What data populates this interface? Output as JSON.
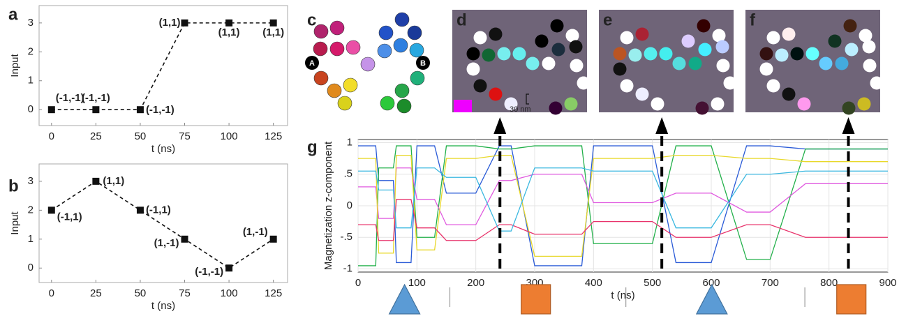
{
  "chart_data": [
    {
      "type": "line",
      "label": "a",
      "xlabel": "t (ns)",
      "ylabel": "Input",
      "x": [
        0,
        25,
        50,
        75,
        100,
        125
      ],
      "values": [
        0,
        0,
        0,
        3,
        3,
        3
      ],
      "point_labels": [
        "(-1,-1)",
        "(-1,-1)",
        "(-1,-1)",
        "(1,1)",
        "(1,1)",
        "(1,1)"
      ],
      "color": "#111111",
      "line_style": "dashed",
      "marker": "square",
      "xlim": [
        -7,
        133
      ],
      "ylim": [
        -0.55,
        3.6
      ],
      "xticks": [
        0,
        25,
        50,
        75,
        100,
        125
      ],
      "yticks": [
        0,
        1,
        2,
        3
      ],
      "grid": false
    },
    {
      "type": "line",
      "label": "b",
      "xlabel": "t (ns)",
      "ylabel": "Input",
      "x": [
        0,
        25,
        50,
        75,
        100,
        125
      ],
      "values": [
        2,
        3,
        2,
        1,
        0,
        1
      ],
      "point_labels": [
        "(-1,1)",
        "(1,1)",
        "(-1,1)",
        "(1,-1)",
        "(-1,-1)",
        "(1,-1)"
      ],
      "color": "#111111",
      "line_style": "dashed",
      "marker": "square",
      "xlim": [
        -7,
        133
      ],
      "ylim": [
        -0.5,
        3.6
      ],
      "xticks": [
        0,
        25,
        50,
        75,
        100,
        125
      ],
      "yticks": [
        0,
        1,
        2,
        3
      ],
      "grid": false
    },
    {
      "type": "line",
      "label": "g",
      "xlabel": "t (ns)",
      "ylabel": "Magnetization z-component",
      "x": [
        0,
        30,
        35,
        60,
        65,
        90,
        100,
        130,
        150,
        200,
        240,
        260,
        300,
        380,
        400,
        500,
        540,
        600,
        660,
        700,
        760,
        830,
        900
      ],
      "series": [
        {
          "color": "#2a5bd7",
          "values": [
            0.95,
            0.95,
            0.4,
            0.4,
            -0.9,
            -0.9,
            0.95,
            0.95,
            0.2,
            0.2,
            0.95,
            0.95,
            -0.95,
            -0.95,
            0.95,
            0.95,
            -0.9,
            -0.9,
            0.95,
            0.95,
            0.9,
            0.9,
            0.9
          ]
        },
        {
          "color": "#22b04a",
          "values": [
            -0.95,
            -0.95,
            0.6,
            0.6,
            0.95,
            0.95,
            -0.5,
            -0.5,
            0.95,
            0.95,
            0.9,
            0.9,
            0.95,
            0.95,
            -0.6,
            -0.6,
            0.95,
            0.95,
            -0.85,
            -0.85,
            0.9,
            0.9,
            0.9
          ]
        },
        {
          "color": "#e05adf",
          "values": [
            0.3,
            0.3,
            -0.2,
            -0.2,
            0.6,
            0.6,
            0.1,
            0.1,
            -0.3,
            -0.3,
            0.4,
            0.4,
            0.5,
            0.5,
            0.05,
            0.05,
            0.2,
            0.2,
            -0.1,
            -0.1,
            0.35,
            0.35,
            0.35
          ]
        },
        {
          "color": "#e8d82a",
          "values": [
            0.75,
            0.75,
            -0.75,
            -0.75,
            0.8,
            0.8,
            -0.7,
            -0.7,
            0.75,
            0.75,
            0.8,
            0.8,
            -0.8,
            -0.8,
            0.75,
            0.75,
            0.8,
            0.8,
            0.75,
            0.75,
            0.7,
            0.7,
            0.7
          ]
        },
        {
          "color": "#e8336b",
          "values": [
            -0.3,
            -0.3,
            -0.55,
            -0.55,
            0.1,
            0.1,
            -0.35,
            -0.35,
            -0.55,
            -0.55,
            -0.3,
            -0.3,
            -0.45,
            -0.45,
            -0.25,
            -0.25,
            -0.5,
            -0.5,
            -0.3,
            -0.3,
            -0.5,
            -0.5,
            -0.5
          ]
        },
        {
          "color": "#3bb8e0",
          "values": [
            0.55,
            0.55,
            0.25,
            0.25,
            -0.35,
            -0.35,
            0.6,
            0.6,
            0.45,
            0.45,
            -0.4,
            -0.4,
            0.6,
            0.6,
            0.55,
            0.55,
            -0.35,
            -0.35,
            0.5,
            0.5,
            0.55,
            0.55,
            0.55
          ]
        }
      ],
      "xlim": [
        0,
        900
      ],
      "ylim": [
        -1.05,
        1.05
      ],
      "xticks": [
        0,
        100,
        200,
        300,
        400,
        500,
        600,
        700,
        800,
        900
      ],
      "yticks": [
        1,
        {
          "value": 0.5,
          "label": ".5"
        },
        0,
        {
          "value": -0.5,
          "label": "-.5"
        },
        -1
      ],
      "grid": true,
      "snapshot_times": [
        241,
        516,
        833
      ],
      "separators": [
        156,
        455,
        759
      ],
      "input_markers": [
        {
          "x": 79,
          "shape": "triangle"
        },
        {
          "x": 302,
          "shape": "square"
        },
        {
          "x": 601,
          "shape": "triangle"
        },
        {
          "x": 838,
          "shape": "square"
        }
      ],
      "shape_colors": {
        "triangle": "#5b9bd5",
        "square": "#ed7d31"
      }
    }
  ],
  "diagram": {
    "label": "c",
    "nodes": [
      "A",
      "B"
    ]
  },
  "images": [
    {
      "label": "d",
      "scale": "30 nm"
    },
    {
      "label": "e"
    },
    {
      "label": "f"
    }
  ]
}
